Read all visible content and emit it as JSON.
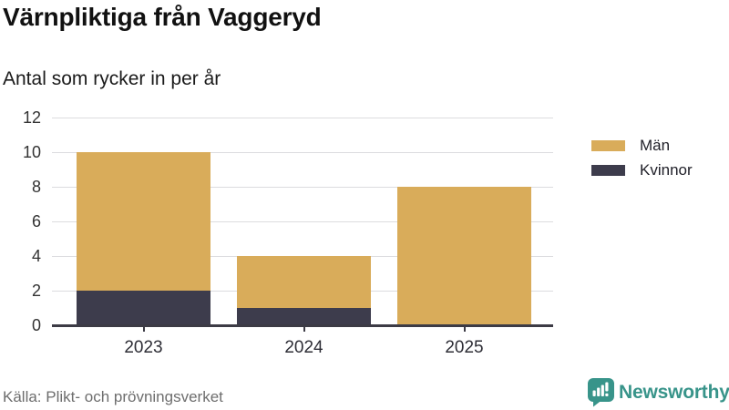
{
  "header": {
    "title": "Värnpliktiga från Vaggeryd",
    "subtitle": "Antal som rycker in per år"
  },
  "chart_data": {
    "type": "bar",
    "stacked": true,
    "title": "Värnpliktiga från Vaggeryd",
    "subtitle": "Antal som rycker in per år",
    "categories": [
      "2023",
      "2024",
      "2025"
    ],
    "series": [
      {
        "name": "Män",
        "color": "#d9ac5a",
        "values": [
          8,
          3,
          8
        ]
      },
      {
        "name": "Kvinnor",
        "color": "#3d3c4c",
        "values": [
          2,
          1,
          0
        ]
      }
    ],
    "totals": [
      10,
      4,
      8
    ],
    "y_ticks": [
      0,
      2,
      4,
      6,
      8,
      10,
      12
    ],
    "ylim": [
      0,
      12
    ],
    "xlabel": "",
    "ylabel": "",
    "grid": true,
    "legend_position": "right"
  },
  "legend": {
    "items": [
      {
        "label": "Män",
        "color": "#d9ac5a"
      },
      {
        "label": "Kvinnor",
        "color": "#3d3c4c"
      }
    ]
  },
  "footer": {
    "source": "Källa: Plikt- och prövningsverket",
    "brand": "Newsworthy",
    "brand_color": "#38948a",
    "brand_icon": "newsworthy-chart-bubble-icon"
  },
  "colors": {
    "axis": "#3c3b45",
    "gridline": "#dcdcdf",
    "background": "#ffffff"
  }
}
